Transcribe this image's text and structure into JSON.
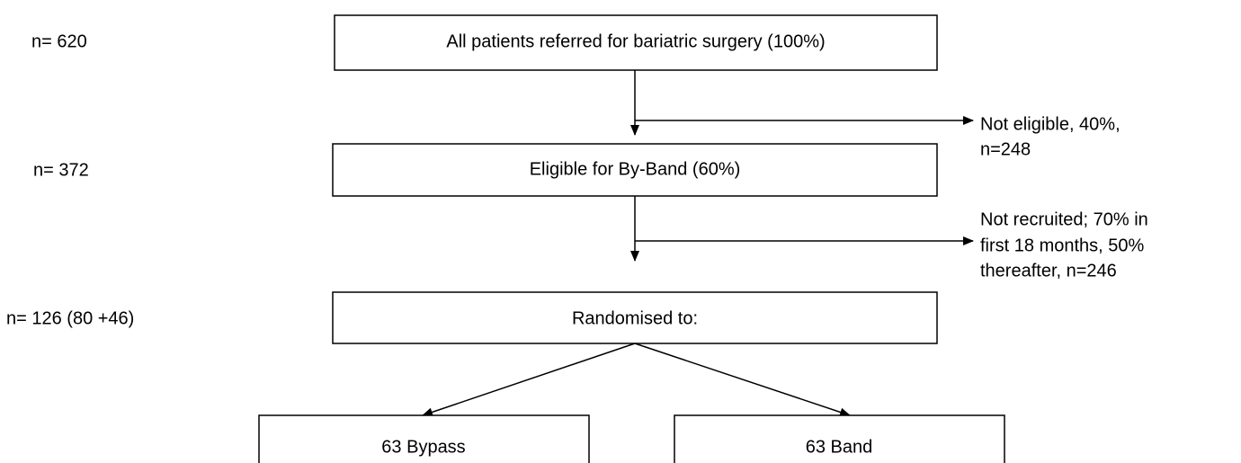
{
  "left_labels": [
    "n= 620",
    "n= 372",
    "n= 126 (80 +46)"
  ],
  "nodes": [
    {
      "label": "All patients referred for bariatric surgery (100%)"
    },
    {
      "label": "Eligible for By-Band (60%)"
    },
    {
      "label": "Randomised to:"
    },
    {
      "label": "63 Bypass"
    },
    {
      "label": "63 Band"
    }
  ],
  "exclusions": [
    {
      "lines": [
        "Not eligible, 40%,",
        "n=248"
      ]
    },
    {
      "lines": [
        "Not recruited; 70% in",
        "first 18 months, 50%",
        "thereafter, n=246"
      ]
    }
  ]
}
